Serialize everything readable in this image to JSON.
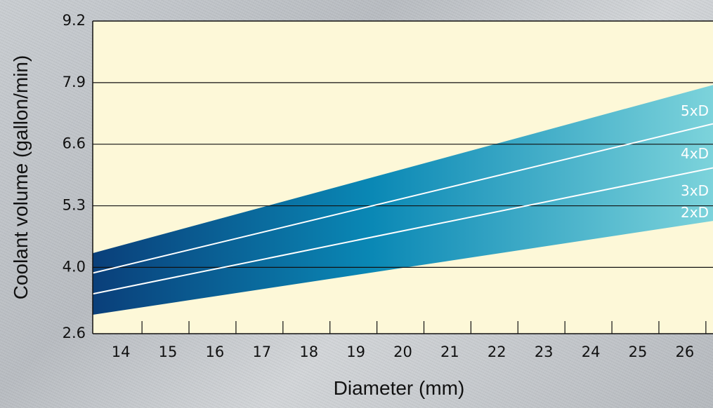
{
  "chart_data": {
    "type": "area",
    "title": "",
    "xlabel": "Diameter (mm)",
    "ylabel": "Coolant volume (gallon/min)",
    "xlim": [
      13.4,
      26.6
    ],
    "ylim": [
      2.6,
      9.2
    ],
    "x_ticks": [
      14,
      15,
      16,
      17,
      18,
      19,
      20,
      21,
      22,
      23,
      24,
      25,
      26
    ],
    "y_ticks": [
      2.6,
      4.0,
      5.3,
      6.6,
      7.9,
      9.2
    ],
    "y_tick_labels": [
      "2.6",
      "4.0",
      "5.3",
      "6.6",
      "7.9",
      "9.2"
    ],
    "grid": "horizontal",
    "series": [
      {
        "name": "5xD",
        "x": [
          13.4,
          26.6
        ],
        "y": [
          4.3,
          7.85
        ]
      },
      {
        "name": "4xD",
        "x": [
          13.4,
          26.6
        ],
        "y": [
          3.88,
          7.03
        ]
      },
      {
        "name": "3xD",
        "x": [
          13.4,
          26.6
        ],
        "y": [
          3.44,
          6.1
        ]
      },
      {
        "name": "2xD",
        "x": [
          13.4,
          26.6
        ],
        "y": [
          3.0,
          4.98
        ]
      }
    ],
    "band_colors": [
      "#0a3f7a",
      "#0a88b5",
      "#7cd3db"
    ],
    "plot_background": "#fdf8d8"
  }
}
